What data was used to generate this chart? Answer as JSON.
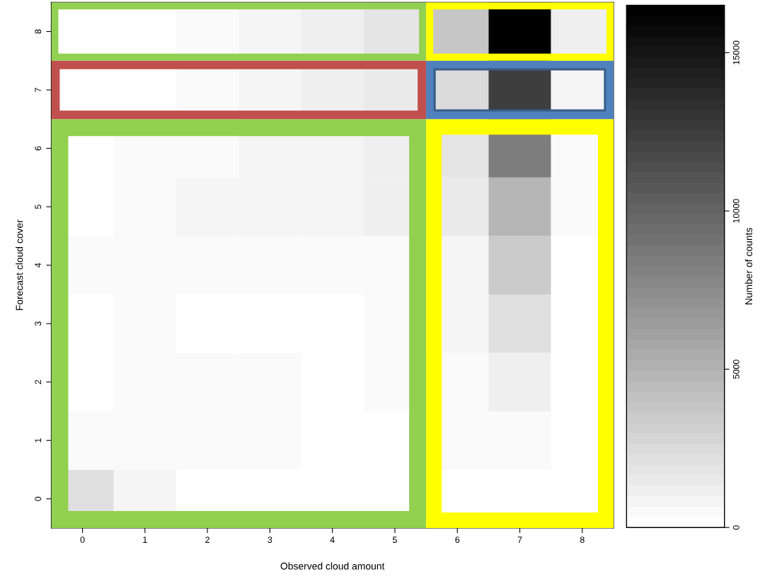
{
  "chart_data": {
    "type": "heatmap",
    "xlabel": "Observed cloud amount",
    "ylabel": "Forecast cloud cover",
    "clabel": "Number of counts",
    "categories": [
      "0",
      "1",
      "2",
      "3",
      "4",
      "5",
      "6",
      "7",
      "8"
    ],
    "y_categories": [
      "8",
      "7",
      "6",
      "5",
      "4",
      "3",
      "2",
      "1",
      "0"
    ],
    "cells": [
      [
        0,
        0,
        400,
        700,
        1100,
        1800,
        3800,
        16400,
        1100
      ],
      [
        0,
        0,
        400,
        700,
        1000,
        1400,
        2400,
        12500,
        700
      ],
      [
        0,
        400,
        400,
        700,
        700,
        1100,
        1800,
        8300,
        400
      ],
      [
        0,
        400,
        700,
        700,
        700,
        1100,
        1400,
        4800,
        400
      ],
      [
        400,
        400,
        400,
        400,
        400,
        400,
        700,
        3400,
        0
      ],
      [
        0,
        400,
        0,
        0,
        0,
        400,
        700,
        2100,
        0
      ],
      [
        0,
        400,
        400,
        400,
        0,
        400,
        400,
        1100,
        0
      ],
      [
        400,
        400,
        400,
        400,
        0,
        0,
        400,
        400,
        0
      ],
      [
        2100,
        700,
        0,
        0,
        0,
        0,
        0,
        0,
        0
      ]
    ],
    "clim": [
      0,
      16500
    ],
    "cticks": [
      0,
      5000,
      10000,
      15000
    ]
  }
}
